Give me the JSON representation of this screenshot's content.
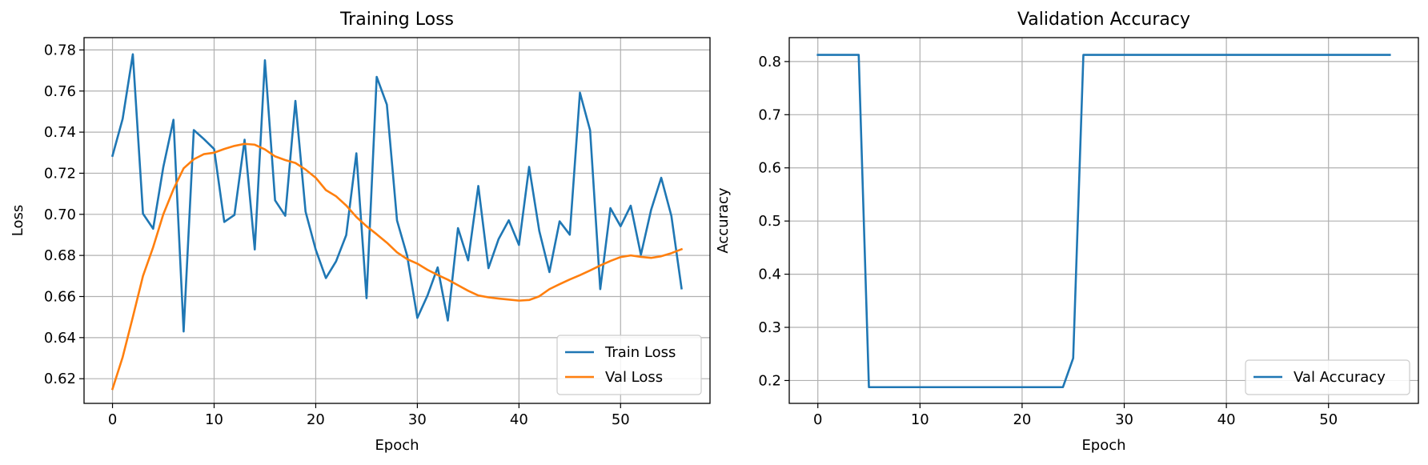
{
  "chart_data": [
    {
      "type": "line",
      "title": "Training Loss",
      "xlabel": "Epoch",
      "ylabel": "Loss",
      "xlim": [
        -2.8,
        58.8
      ],
      "ylim": [
        0.608,
        0.786
      ],
      "xticks": [
        0,
        10,
        20,
        30,
        40,
        50
      ],
      "yticks": [
        0.62,
        0.64,
        0.66,
        0.68,
        0.7,
        0.72,
        0.74,
        0.76,
        0.78
      ],
      "tick_decimals": 2,
      "grid": true,
      "legend_position": "lower-right",
      "x": [
        0,
        1,
        2,
        3,
        4,
        5,
        6,
        7,
        8,
        9,
        10,
        11,
        12,
        13,
        14,
        15,
        16,
        17,
        18,
        19,
        20,
        21,
        22,
        23,
        24,
        25,
        26,
        27,
        28,
        29,
        30,
        31,
        32,
        33,
        34,
        35,
        36,
        37,
        38,
        39,
        40,
        41,
        42,
        43,
        44,
        45,
        46,
        47,
        48,
        49,
        50,
        51,
        52,
        53,
        54,
        55,
        56
      ],
      "series": [
        {
          "name": "Train Loss",
          "color": "#1f77b4",
          "values": [
            0.7285,
            0.7465,
            0.7779,
            0.7003,
            0.693,
            0.723,
            0.746,
            0.643,
            0.741,
            0.7366,
            0.7318,
            0.6963,
            0.6997,
            0.7363,
            0.6829,
            0.775,
            0.7068,
            0.6993,
            0.7552,
            0.7013,
            0.6828,
            0.669,
            0.6771,
            0.6899,
            0.7297,
            0.6592,
            0.7669,
            0.7534,
            0.697,
            0.6798,
            0.6496,
            0.6605,
            0.6742,
            0.6483,
            0.6933,
            0.6776,
            0.7138,
            0.6738,
            0.688,
            0.6971,
            0.6851,
            0.7231,
            0.6919,
            0.6719,
            0.6966,
            0.6901,
            0.7592,
            0.7409,
            0.6636,
            0.703,
            0.6942,
            0.7042,
            0.6803,
            0.7021,
            0.7178,
            0.6992,
            0.664
          ]
        },
        {
          "name": "Val Loss",
          "color": "#ff7f0e",
          "values": [
            0.615,
            0.6305,
            0.65,
            0.67,
            0.684,
            0.7,
            0.7122,
            0.7224,
            0.7268,
            0.7293,
            0.73,
            0.7318,
            0.7333,
            0.7343,
            0.7339,
            0.7316,
            0.7282,
            0.7264,
            0.725,
            0.7218,
            0.7178,
            0.7118,
            0.7088,
            0.7043,
            0.6987,
            0.6942,
            0.6903,
            0.6862,
            0.6815,
            0.6782,
            0.676,
            0.673,
            0.6705,
            0.6682,
            0.6655,
            0.6628,
            0.6605,
            0.6596,
            0.659,
            0.6585,
            0.658,
            0.6583,
            0.6601,
            0.6636,
            0.666,
            0.6683,
            0.6704,
            0.6727,
            0.6751,
            0.6773,
            0.6792,
            0.68,
            0.6793,
            0.6788,
            0.6796,
            0.6811,
            0.683
          ]
        }
      ]
    },
    {
      "type": "line",
      "title": "Validation Accuracy",
      "xlabel": "Epoch",
      "ylabel": "Accuracy",
      "xlim": [
        -2.8,
        58.8
      ],
      "ylim": [
        0.157,
        0.845
      ],
      "xticks": [
        0,
        10,
        20,
        30,
        40,
        50
      ],
      "yticks": [
        0.2,
        0.3,
        0.4,
        0.5,
        0.6,
        0.7,
        0.8
      ],
      "tick_decimals": 1,
      "grid": true,
      "legend_position": "lower-right",
      "x": [
        0,
        1,
        2,
        3,
        4,
        5,
        6,
        7,
        8,
        9,
        10,
        11,
        12,
        13,
        14,
        15,
        16,
        17,
        18,
        19,
        20,
        21,
        22,
        23,
        24,
        25,
        26,
        27,
        28,
        29,
        30,
        31,
        32,
        33,
        34,
        35,
        36,
        37,
        38,
        39,
        40,
        41,
        42,
        43,
        44,
        45,
        46,
        47,
        48,
        49,
        50,
        51,
        52,
        53,
        54,
        55,
        56
      ],
      "series": [
        {
          "name": "Val Accuracy",
          "color": "#1f77b4",
          "values": [
            0.8125,
            0.8125,
            0.8125,
            0.8125,
            0.8125,
            0.1875,
            0.1875,
            0.1875,
            0.1875,
            0.1875,
            0.1875,
            0.1875,
            0.1875,
            0.1875,
            0.1875,
            0.1875,
            0.1875,
            0.1875,
            0.1875,
            0.1875,
            0.1875,
            0.1875,
            0.1875,
            0.1875,
            0.1875,
            0.242,
            0.8125,
            0.8125,
            0.8125,
            0.8125,
            0.8125,
            0.8125,
            0.8125,
            0.8125,
            0.8125,
            0.8125,
            0.8125,
            0.8125,
            0.8125,
            0.8125,
            0.8125,
            0.8125,
            0.8125,
            0.8125,
            0.8125,
            0.8125,
            0.8125,
            0.8125,
            0.8125,
            0.8125,
            0.8125,
            0.8125,
            0.8125,
            0.8125,
            0.8125,
            0.8125,
            0.8125
          ]
        }
      ]
    }
  ]
}
